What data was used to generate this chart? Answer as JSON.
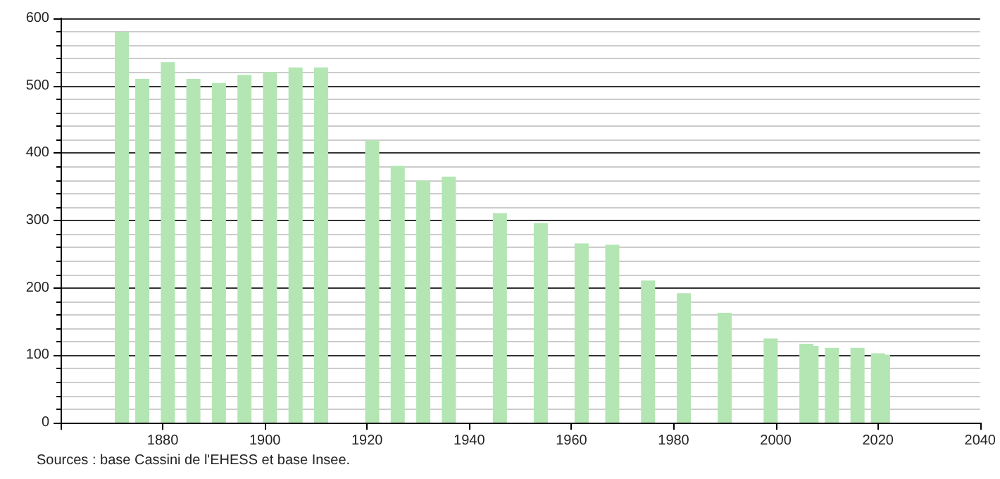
{
  "chart_data": {
    "type": "bar",
    "x": [
      1872,
      1876,
      1881,
      1886,
      1891,
      1896,
      1901,
      1906,
      1911,
      1921,
      1926,
      1931,
      1936,
      1946,
      1954,
      1962,
      1968,
      1975,
      1982,
      1990,
      1999,
      2006,
      2007,
      2011,
      2016,
      2020,
      2021
    ],
    "values": [
      580,
      510,
      535,
      510,
      504,
      516,
      520,
      527,
      527,
      419,
      381,
      359,
      365,
      311,
      296,
      266,
      264,
      211,
      192,
      163,
      125,
      117,
      114,
      111,
      111,
      103,
      101
    ],
    "color": "#b3e6b3",
    "xlim": [
      1860,
      2040
    ],
    "xticks": [
      {
        "value": 1860,
        "label": null
      },
      1880,
      1900,
      1920,
      1940,
      1960,
      1980,
      2000,
      2020,
      2040
    ],
    "ylim": [
      0,
      600
    ],
    "yticks": [
      0,
      100,
      200,
      300,
      400,
      500,
      600
    ],
    "grid": "y",
    "annotations": [
      "Sources : base Cassini de l'EHESS et base Insee."
    ]
  }
}
